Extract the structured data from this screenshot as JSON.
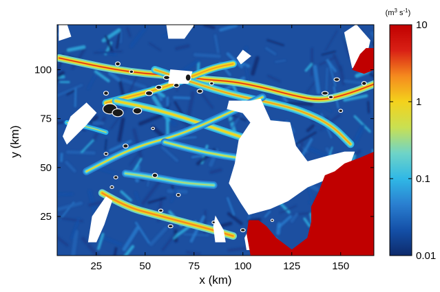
{
  "chart_data": {
    "type": "heatmap",
    "title": "",
    "xlabel": "x (km)",
    "ylabel": "y (km)",
    "xlim": [
      5,
      167
    ],
    "ylim": [
      5,
      123
    ],
    "xticks": [
      25,
      50,
      75,
      100,
      125,
      150
    ],
    "yticks": [
      25,
      50,
      75,
      100
    ],
    "colorbar": {
      "label_parts": [
        "(m",
        "3",
        " s",
        "-1",
        ")"
      ],
      "scale": "log",
      "range": [
        0.01,
        10
      ],
      "ticks": [
        {
          "value": 10,
          "label": "10"
        },
        {
          "value": 1,
          "label": "1"
        },
        {
          "value": 0.1,
          "label": "0.1"
        },
        {
          "value": 0.01,
          "label": "0.01"
        }
      ],
      "colormap": [
        "#0d2a6b",
        "#1450a8",
        "#2a7fd0",
        "#30b8e6",
        "#6fd4c7",
        "#c9e052",
        "#f4d21c",
        "#f58a1e",
        "#d92015",
        "#c00000"
      ]
    },
    "channels": [
      {
        "value": 3.0,
        "points": [
          [
            6,
            106
          ],
          [
            20,
            103
          ],
          [
            35,
            100
          ],
          [
            50,
            98
          ],
          [
            65,
            97
          ],
          [
            80,
            95
          ],
          [
            95,
            94
          ],
          [
            110,
            91
          ],
          [
            125,
            87
          ],
          [
            140,
            84
          ],
          [
            155,
            88
          ],
          [
            168,
            93
          ]
        ]
      },
      {
        "value": 2.0,
        "points": [
          [
            30,
            83
          ],
          [
            45,
            87
          ],
          [
            60,
            91
          ],
          [
            75,
            97
          ],
          [
            85,
            101
          ],
          [
            95,
            103
          ]
        ]
      },
      {
        "value": 1.5,
        "points": [
          [
            55,
            100
          ],
          [
            70,
            95
          ],
          [
            85,
            90
          ],
          [
            100,
            86
          ],
          [
            115,
            83
          ],
          [
            130,
            79
          ],
          [
            145,
            72
          ],
          [
            155,
            62
          ]
        ]
      },
      {
        "value": 1.2,
        "points": [
          [
            35,
            84
          ],
          [
            50,
            81
          ],
          [
            65,
            77
          ],
          [
            80,
            72
          ],
          [
            95,
            67
          ],
          [
            110,
            62
          ]
        ]
      },
      {
        "value": 0.8,
        "points": [
          [
            20,
            48
          ],
          [
            35,
            56
          ],
          [
            50,
            62
          ],
          [
            65,
            66
          ],
          [
            80,
            72
          ],
          [
            95,
            79
          ],
          [
            110,
            86
          ]
        ]
      },
      {
        "value": 0.6,
        "points": [
          [
            60,
            63
          ],
          [
            75,
            59
          ],
          [
            90,
            56
          ],
          [
            105,
            54
          ]
        ]
      },
      {
        "value": 2.5,
        "points": [
          [
            28,
            37
          ],
          [
            40,
            30
          ],
          [
            55,
            26
          ],
          [
            70,
            22
          ],
          [
            85,
            18
          ],
          [
            95,
            15
          ]
        ]
      },
      {
        "value": 0.5,
        "points": [
          [
            40,
            47
          ],
          [
            55,
            45
          ],
          [
            70,
            42
          ],
          [
            85,
            41
          ]
        ]
      },
      {
        "value": 0.4,
        "points": [
          [
            10,
            73
          ],
          [
            20,
            71
          ],
          [
            30,
            68
          ]
        ]
      }
    ],
    "no_data_regions": [
      [
        [
          10,
          62
        ],
        [
          20,
          72
        ],
        [
          25,
          78
        ],
        [
          20,
          83
        ],
        [
          12,
          76
        ],
        [
          8,
          66
        ]
      ],
      [
        [
          93,
          84
        ],
        [
          104,
          84
        ],
        [
          109,
          85
        ],
        [
          114,
          74
        ],
        [
          124,
          73
        ],
        [
          127,
          61
        ],
        [
          133,
          53
        ],
        [
          144,
          56
        ],
        [
          152,
          58
        ],
        [
          157,
          58
        ],
        [
          153,
          47
        ],
        [
          145,
          45
        ],
        [
          133,
          40
        ],
        [
          123,
          33
        ],
        [
          114,
          29
        ],
        [
          103,
          26
        ],
        [
          99,
          32
        ],
        [
          93,
          42
        ],
        [
          96,
          52
        ],
        [
          98,
          64
        ],
        [
          104,
          73
        ],
        [
          100,
          78
        ],
        [
          92,
          80
        ]
      ],
      [
        [
          62,
          93
        ],
        [
          72,
          93
        ],
        [
          74,
          99
        ],
        [
          63,
          100
        ]
      ],
      [
        [
          70,
          116
        ],
        [
          75,
          123
        ],
        [
          61,
          123
        ],
        [
          62,
          116
        ]
      ],
      [
        [
          156,
          101
        ],
        [
          163,
          106
        ],
        [
          165,
          115
        ],
        [
          158,
          123
        ],
        [
          152,
          119
        ]
      ],
      [
        [
          25,
          12
        ],
        [
          29,
          21
        ],
        [
          33,
          33
        ],
        [
          30,
          35
        ],
        [
          23,
          25
        ],
        [
          21,
          12
        ]
      ],
      [
        [
          86,
          25
        ],
        [
          90,
          18
        ],
        [
          91,
          12
        ],
        [
          86,
          12
        ],
        [
          85,
          20
        ]
      ],
      [
        [
          107,
          8
        ],
        [
          109,
          16
        ],
        [
          105,
          22
        ],
        [
          101,
          14
        ],
        [
          102,
          8
        ]
      ],
      [
        [
          99,
          103
        ],
        [
          104,
          107
        ],
        [
          100,
          110
        ],
        [
          97,
          106
        ]
      ],
      [
        [
          6,
          115
        ],
        [
          12,
          117
        ],
        [
          10,
          123
        ],
        [
          6,
          123
        ]
      ]
    ],
    "saturated_regions": [
      [
        [
          167,
          58
        ],
        [
          160,
          55
        ],
        [
          152,
          52
        ],
        [
          147,
          48
        ],
        [
          142,
          46
        ],
        [
          139,
          38
        ],
        [
          135,
          30
        ],
        [
          135,
          22
        ],
        [
          133,
          14
        ],
        [
          125,
          8
        ],
        [
          117,
          14
        ],
        [
          112,
          20
        ],
        [
          108,
          23
        ],
        [
          103,
          23
        ],
        [
          102,
          16
        ],
        [
          104,
          5
        ],
        [
          167,
          5
        ]
      ],
      [
        [
          156,
          100
        ],
        [
          160,
          108
        ],
        [
          163,
          111
        ],
        [
          167,
          111
        ],
        [
          167,
          100
        ],
        [
          162,
          98
        ]
      ]
    ],
    "lakes": [
      [
        32,
        80,
        3.6,
        2.6
      ],
      [
        36,
        78,
        2.8,
        2.0
      ],
      [
        46,
        79,
        2.2,
        1.6
      ],
      [
        52,
        88,
        1.8,
        1.2
      ],
      [
        57,
        91,
        1.5,
        1.0
      ],
      [
        61,
        96,
        1.6,
        1.0
      ],
      [
        66,
        92,
        1.4,
        1.0
      ],
      [
        72,
        96,
        1.4,
        1.8
      ],
      [
        78,
        89,
        1.4,
        1.0
      ],
      [
        84,
        93,
        1.0,
        0.8
      ],
      [
        30,
        88,
        1.2,
        1.0
      ],
      [
        36,
        103,
        1.2,
        1.0
      ],
      [
        43,
        99,
        1.0,
        0.8
      ],
      [
        40,
        61,
        1.3,
        1.0
      ],
      [
        30,
        57,
        1.0,
        0.8
      ],
      [
        55,
        46,
        1.3,
        1.1
      ],
      [
        35,
        45,
        1.0,
        0.8
      ],
      [
        67,
        36,
        1.0,
        0.8
      ],
      [
        58,
        28,
        1.1,
        0.8
      ],
      [
        63,
        20,
        1.2,
        0.8
      ],
      [
        85,
        22,
        0.8,
        0.7
      ],
      [
        100,
        18,
        1.2,
        0.8
      ],
      [
        115,
        23,
        0.7,
        0.6
      ],
      [
        142,
        88,
        1.6,
        0.9
      ],
      [
        148,
        95,
        1.4,
        0.9
      ],
      [
        162,
        93,
        1.2,
        1.0
      ],
      [
        150,
        79,
        1.0,
        0.8
      ],
      [
        145,
        86,
        1.2,
        0.8
      ],
      [
        54,
        70,
        0.8,
        0.6
      ],
      [
        33,
        40,
        0.9,
        0.7
      ]
    ]
  }
}
